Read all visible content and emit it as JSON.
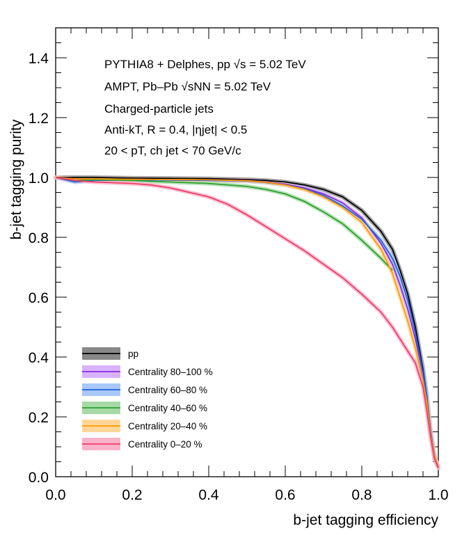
{
  "chart_data": {
    "type": "line",
    "xlabel": "b-jet tagging efficiency",
    "ylabel": "b-jet tagging purity",
    "xlim": [
      0.0,
      1.0
    ],
    "ylim": [
      0.0,
      1.5
    ],
    "xticks": [
      "0.0",
      "0.2",
      "0.4",
      "0.6",
      "0.8",
      "1.0"
    ],
    "yticks": [
      "0.0",
      "0.2",
      "0.4",
      "0.6",
      "0.8",
      "1.0",
      "1.2",
      "1.4"
    ],
    "legend_position": "bottom-left",
    "annotations": {
      "line1": "PYTHIA8 + Delphes, pp  √s = 5.02 TeV",
      "line2": "AMPT, Pb–Pb  √sNN = 5.02 TeV",
      "line3": "Charged-particle jets",
      "line4": "Anti-kT,  R = 0.4, |ηjet| < 0.5",
      "line5": "20 <  pT, ch jet < 70 GeV/c"
    },
    "series": [
      {
        "name": "pp",
        "color": "#000000",
        "band_color": "#888888",
        "x": [
          0.0,
          0.05,
          0.1,
          0.2,
          0.3,
          0.4,
          0.5,
          0.55,
          0.6,
          0.65,
          0.7,
          0.75,
          0.8,
          0.85,
          0.88,
          0.9,
          0.92,
          0.94,
          0.96,
          0.97,
          0.98,
          0.99,
          1.0
        ],
        "y": [
          1.0,
          1.0,
          1.0,
          0.998,
          0.997,
          0.996,
          0.993,
          0.99,
          0.985,
          0.975,
          0.96,
          0.935,
          0.89,
          0.82,
          0.76,
          0.69,
          0.61,
          0.5,
          0.36,
          0.27,
          0.15,
          0.06,
          0.03
        ]
      },
      {
        "name": "Centrality 80–100 %",
        "color": "#8a2be2",
        "band_color": "#d9b3ff",
        "x": [
          0.0,
          0.05,
          0.1,
          0.2,
          0.3,
          0.4,
          0.5,
          0.55,
          0.6,
          0.65,
          0.7,
          0.75,
          0.8,
          0.85,
          0.88,
          0.9,
          0.92,
          0.94,
          0.96,
          0.97,
          0.98,
          0.99,
          1.0
        ],
        "y": [
          1.0,
          0.995,
          0.995,
          0.994,
          0.993,
          0.992,
          0.99,
          0.985,
          0.978,
          0.965,
          0.945,
          0.915,
          0.865,
          0.78,
          0.71,
          0.64,
          0.56,
          0.46,
          0.34,
          0.26,
          0.15,
          0.07,
          0.03
        ]
      },
      {
        "name": "Centrality 60–80 %",
        "color": "#2060e0",
        "band_color": "#a8c8f8",
        "x": [
          0.0,
          0.05,
          0.1,
          0.2,
          0.3,
          0.4,
          0.5,
          0.55,
          0.6,
          0.65,
          0.7,
          0.75,
          0.8,
          0.85,
          0.88,
          0.9,
          0.92,
          0.94,
          0.96,
          0.97,
          0.98,
          0.99,
          1.0
        ],
        "y": [
          1.0,
          0.985,
          0.99,
          0.992,
          0.991,
          0.99,
          0.988,
          0.983,
          0.975,
          0.962,
          0.94,
          0.905,
          0.86,
          0.79,
          0.73,
          0.67,
          0.59,
          0.48,
          0.35,
          0.27,
          0.15,
          0.07,
          0.03
        ]
      },
      {
        "name": "Centrality 40–60 %",
        "color": "#2ca02c",
        "band_color": "#a6d9a6",
        "x": [
          0.0,
          0.05,
          0.1,
          0.2,
          0.3,
          0.4,
          0.5,
          0.55,
          0.6,
          0.65,
          0.7,
          0.75,
          0.8,
          0.85,
          0.88
        ],
        "y": [
          1.0,
          0.99,
          0.992,
          0.99,
          0.985,
          0.98,
          0.97,
          0.96,
          0.945,
          0.92,
          0.885,
          0.845,
          0.79,
          0.73,
          0.69
        ]
      },
      {
        "name": "Centrality 20–40 %",
        "color": "#ff9a00",
        "band_color": "#ffd699",
        "x": [
          0.0,
          0.05,
          0.1,
          0.2,
          0.3,
          0.4,
          0.5,
          0.55,
          0.6,
          0.65,
          0.7,
          0.75,
          0.8,
          0.85,
          0.88,
          0.9,
          0.92,
          0.94,
          0.96,
          0.97,
          0.98,
          0.99,
          1.0
        ],
        "y": [
          1.0,
          0.995,
          0.995,
          0.994,
          0.993,
          0.992,
          0.989,
          0.984,
          0.975,
          0.96,
          0.935,
          0.9,
          0.85,
          0.76,
          0.68,
          0.6,
          0.52,
          0.43,
          0.32,
          0.25,
          0.14,
          0.07,
          0.03
        ]
      },
      {
        "name": "Centrality 0–20 %",
        "color": "#f03c6a",
        "band_color": "#f9b3c8",
        "x": [
          0.0,
          0.05,
          0.1,
          0.2,
          0.25,
          0.3,
          0.35,
          0.4,
          0.45,
          0.5,
          0.55,
          0.6,
          0.65,
          0.7,
          0.75,
          0.8,
          0.85,
          0.88,
          0.9,
          0.92,
          0.94,
          0.95,
          0.96,
          0.97,
          0.98,
          0.99,
          1.0
        ],
        "y": [
          1.0,
          0.99,
          0.985,
          0.98,
          0.975,
          0.965,
          0.95,
          0.935,
          0.91,
          0.875,
          0.835,
          0.795,
          0.755,
          0.71,
          0.665,
          0.61,
          0.55,
          0.5,
          0.46,
          0.42,
          0.38,
          0.34,
          0.3,
          0.22,
          0.13,
          0.06,
          0.03
        ]
      }
    ]
  }
}
